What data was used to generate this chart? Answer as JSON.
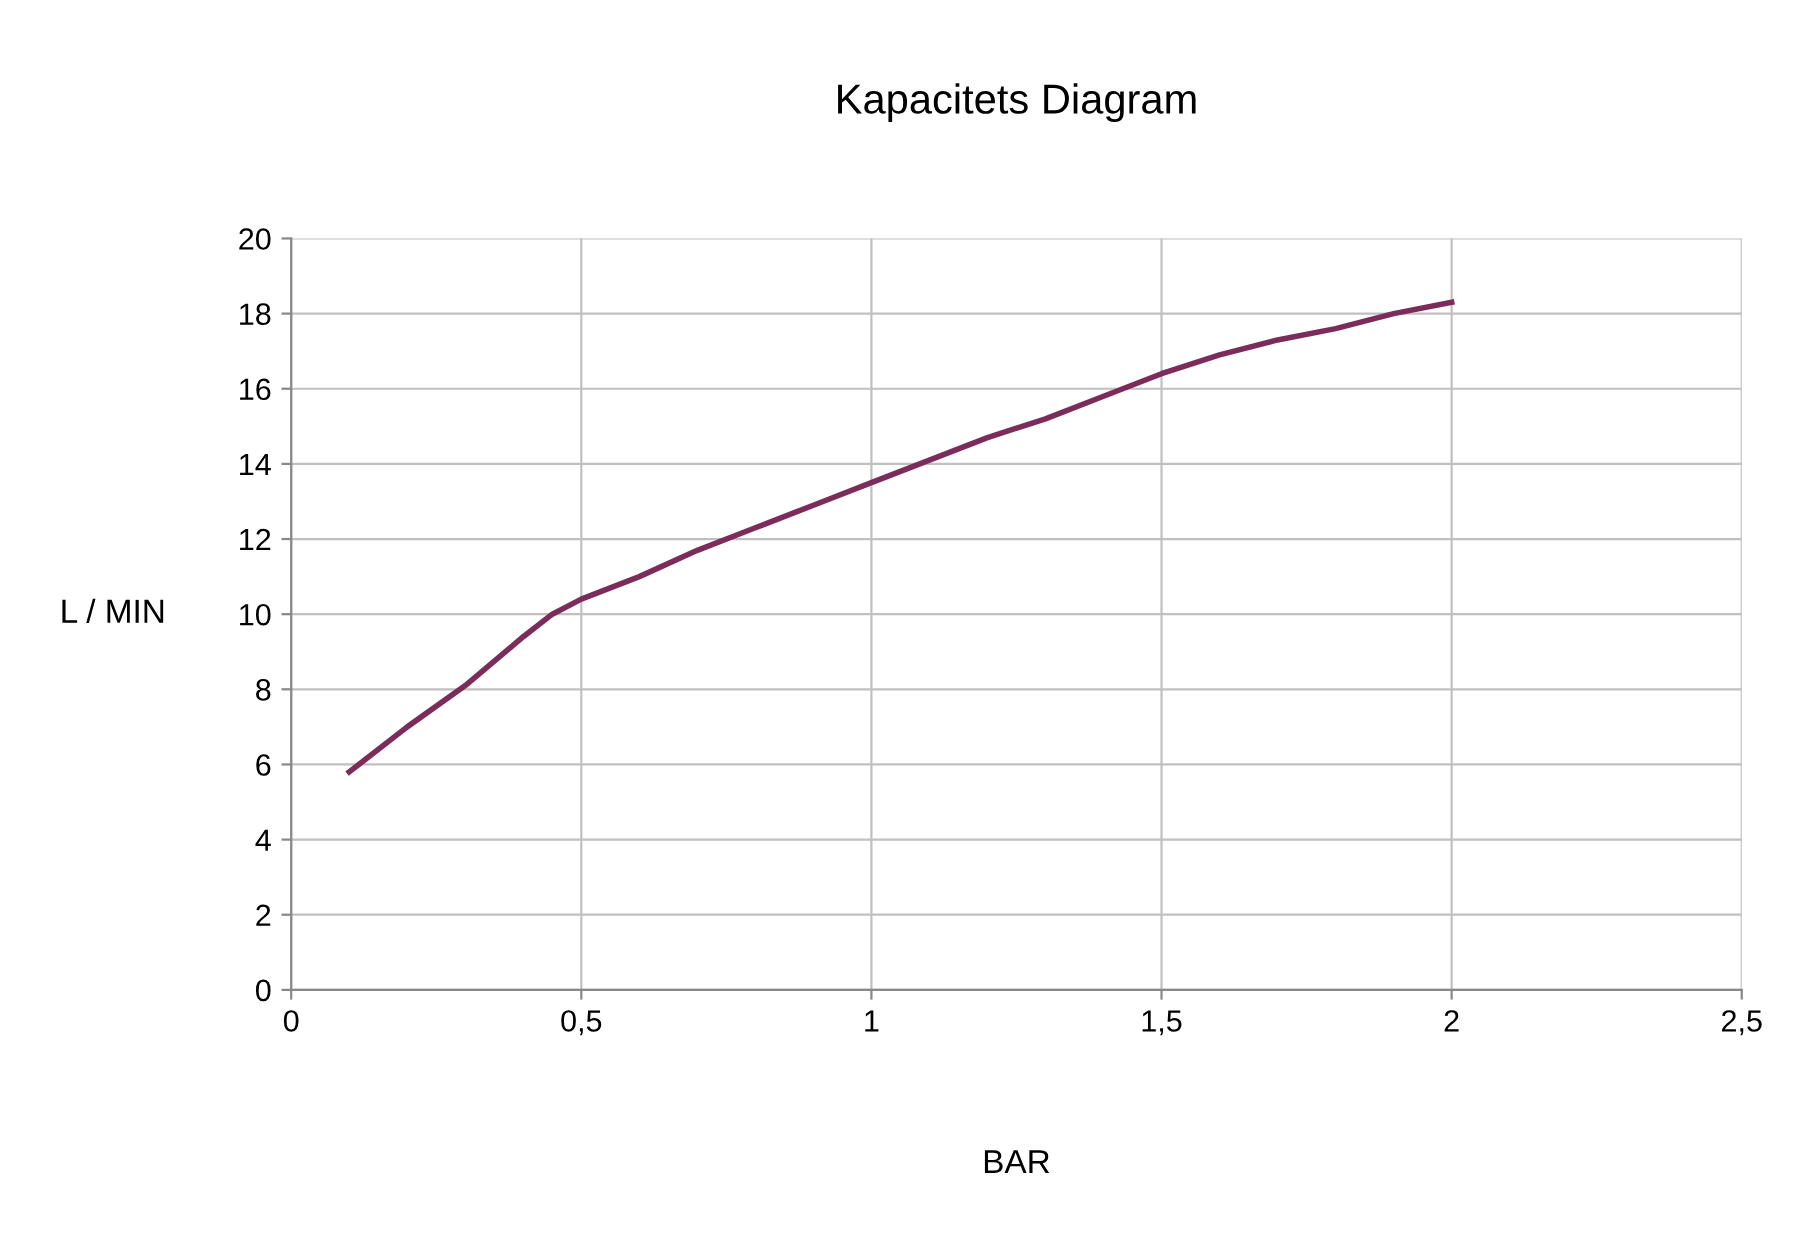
{
  "chart_data": {
    "type": "line",
    "title": "Kapacitets Diagram",
    "xlabel": "BAR",
    "ylabel": "L / MIN",
    "x": [
      0.1,
      0.2,
      0.3,
      0.4,
      0.45,
      0.5,
      0.6,
      0.7,
      0.8,
      0.9,
      1.0,
      1.1,
      1.2,
      1.3,
      1.4,
      1.5,
      1.6,
      1.7,
      1.8,
      1.9,
      2.0
    ],
    "series": [
      {
        "color": "#7b2c5a",
        "values": [
          5.8,
          7.0,
          8.1,
          9.4,
          10.0,
          10.4,
          11.0,
          11.7,
          12.3,
          12.9,
          13.5,
          14.1,
          14.7,
          15.2,
          15.8,
          16.4,
          16.9,
          17.3,
          17.6,
          18.0,
          18.3
        ]
      }
    ],
    "xlim": [
      0,
      2.5
    ],
    "xticks": [
      0,
      {
        "value": 0.5,
        "label": "0,5"
      },
      1,
      {
        "value": 1.5,
        "label": "1,5"
      },
      2,
      {
        "value": 2.5,
        "label": "2,5"
      }
    ],
    "ylim": [
      0,
      20
    ],
    "yticks": [
      0,
      2,
      4,
      6,
      8,
      10,
      12,
      14,
      16,
      18,
      20
    ],
    "grid": true,
    "legend": false,
    "marker": "none",
    "line_style": "solid"
  }
}
